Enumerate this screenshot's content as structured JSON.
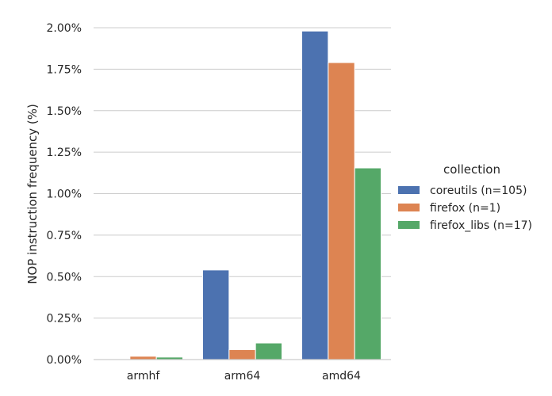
{
  "chart_data": {
    "type": "bar",
    "title": "",
    "xlabel": "",
    "ylabel": "NOP instruction frequency (%)",
    "categories": [
      "armhf",
      "arm64",
      "amd64"
    ],
    "ylim": [
      0,
      2.0
    ],
    "yticks": [
      "0.00%",
      "0.25%",
      "0.50%",
      "0.75%",
      "1.00%",
      "1.25%",
      "1.50%",
      "1.75%",
      "2.00%"
    ],
    "grid": "y",
    "legend": {
      "title": "collection",
      "placement": "right"
    },
    "series": [
      {
        "name": "coreutils (n=105)",
        "color": "#4c72b0",
        "values": [
          0.0,
          0.54,
          1.98
        ]
      },
      {
        "name": "firefox (n=1)",
        "color": "#dd8452",
        "values": [
          0.02,
          0.06,
          1.79
        ]
      },
      {
        "name": "firefox_libs (n=17)",
        "color": "#55a868",
        "values": [
          0.015,
          0.1,
          1.155
        ]
      }
    ]
  }
}
